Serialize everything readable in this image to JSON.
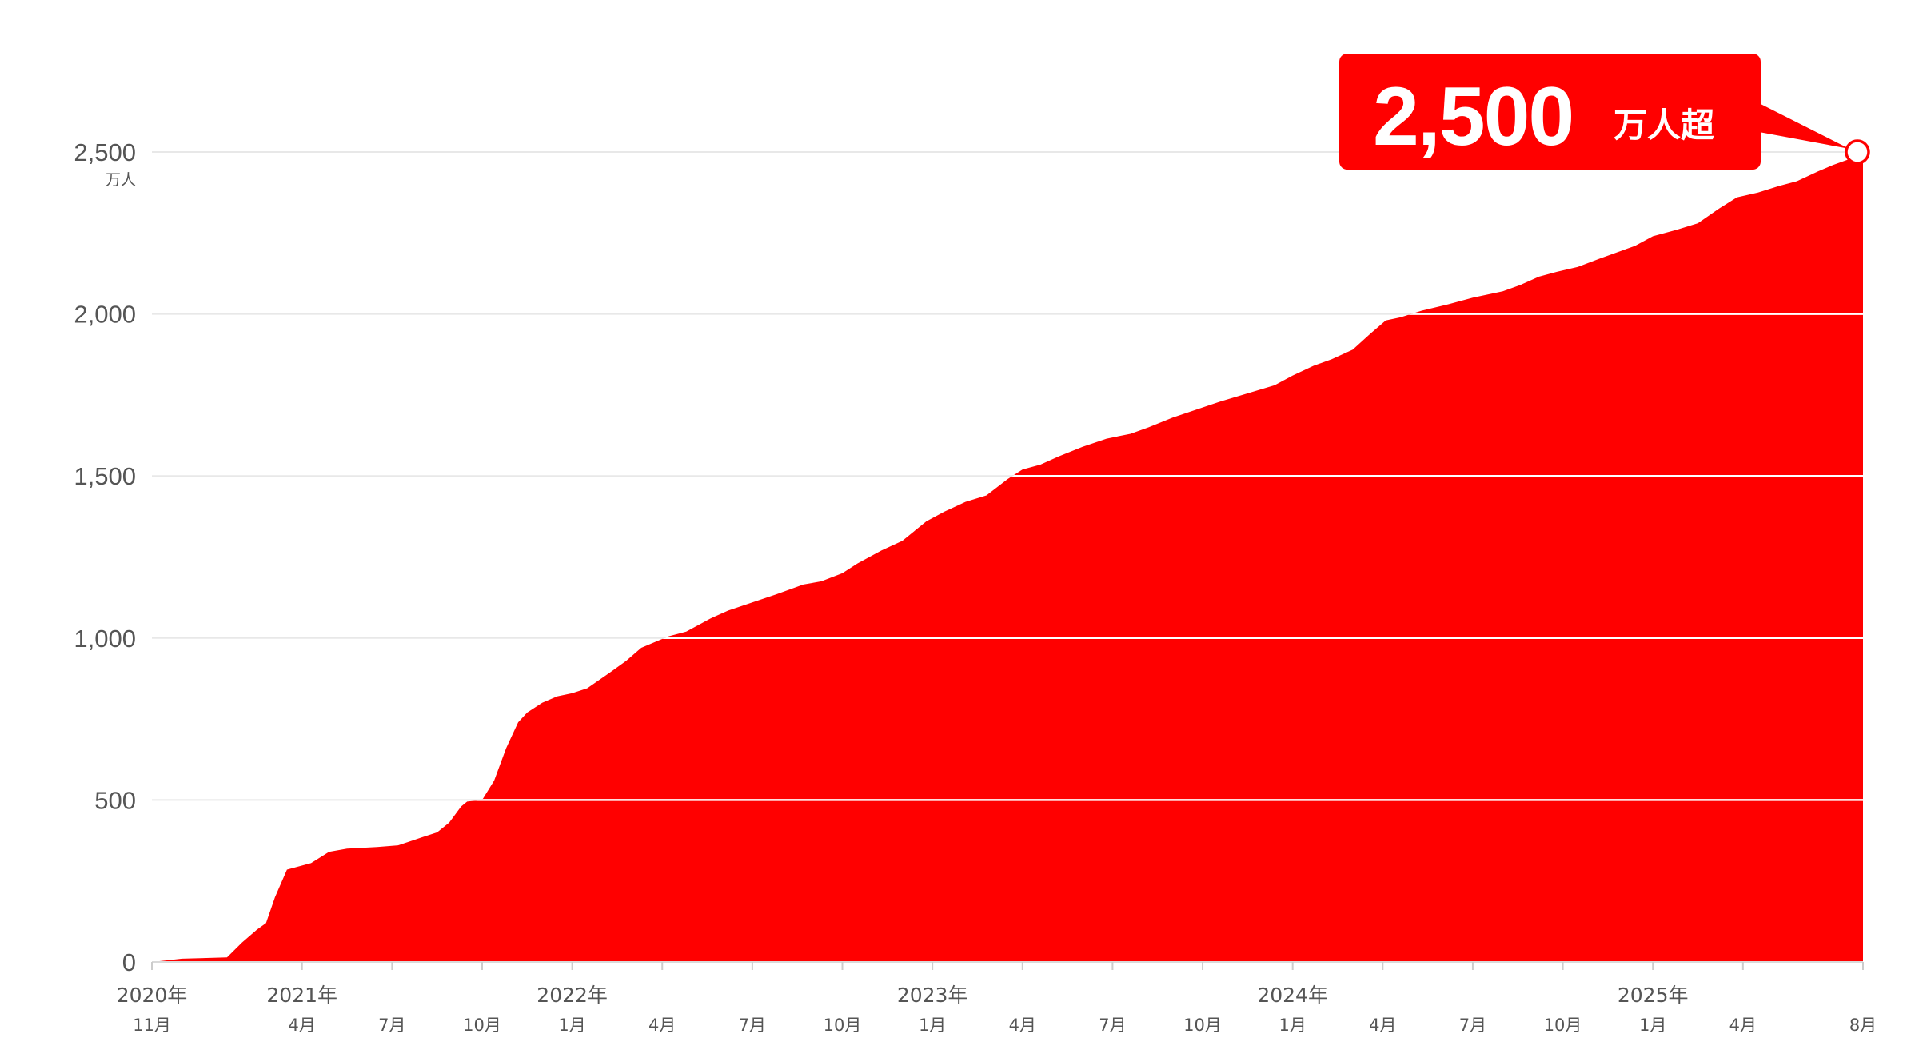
{
  "chart_data": {
    "type": "area",
    "y_unit": "万人",
    "ylim": [
      0,
      2500
    ],
    "y_ticks": [
      {
        "value": 0,
        "label": "0"
      },
      {
        "value": 500,
        "label": "500"
      },
      {
        "value": 1000,
        "label": "1,000"
      },
      {
        "value": 1500,
        "label": "1,500"
      },
      {
        "value": 2000,
        "label": "2,000"
      },
      {
        "value": 2500,
        "label": "2,500"
      }
    ],
    "x_ticks": [
      {
        "m": 0,
        "year": "2020年",
        "month": "11月"
      },
      {
        "m": 5,
        "year": "2021年",
        "month": "4月"
      },
      {
        "m": 8,
        "year": "",
        "month": "7月"
      },
      {
        "m": 11,
        "year": "",
        "month": "10月"
      },
      {
        "m": 14,
        "year": "2022年",
        "month": "1月"
      },
      {
        "m": 17,
        "year": "",
        "month": "4月"
      },
      {
        "m": 20,
        "year": "",
        "month": "7月"
      },
      {
        "m": 23,
        "year": "",
        "month": "10月"
      },
      {
        "m": 26,
        "year": "2023年",
        "month": "1月"
      },
      {
        "m": 29,
        "year": "",
        "month": "4月"
      },
      {
        "m": 32,
        "year": "",
        "month": "7月"
      },
      {
        "m": 35,
        "year": "",
        "month": "10月"
      },
      {
        "m": 38,
        "year": "2024年",
        "month": "1月"
      },
      {
        "m": 41,
        "year": "",
        "month": "4月"
      },
      {
        "m": 44,
        "year": "",
        "month": "7月"
      },
      {
        "m": 47,
        "year": "",
        "month": "10月"
      },
      {
        "m": 50,
        "year": "2025年",
        "month": "1月"
      },
      {
        "m": 53,
        "year": "",
        "month": "4月"
      },
      {
        "m": 57,
        "year": "",
        "month": "8月"
      }
    ],
    "x_range": [
      0,
      57
    ],
    "points": [
      [
        0,
        0
      ],
      [
        0.5,
        5
      ],
      [
        1,
        10
      ],
      [
        2.5,
        14
      ],
      [
        3,
        60
      ],
      [
        3.5,
        100
      ],
      [
        3.8,
        120
      ],
      [
        4.1,
        200
      ],
      [
        4.5,
        285
      ],
      [
        5.3,
        305
      ],
      [
        5.9,
        340
      ],
      [
        6.5,
        350
      ],
      [
        7.5,
        355
      ],
      [
        8.2,
        360
      ],
      [
        9,
        385
      ],
      [
        9.5,
        400
      ],
      [
        9.9,
        430
      ],
      [
        10.3,
        480
      ],
      [
        10.5,
        495
      ],
      [
        11,
        500
      ],
      [
        11.4,
        560
      ],
      [
        11.8,
        660
      ],
      [
        12.2,
        740
      ],
      [
        12.5,
        770
      ],
      [
        13,
        800
      ],
      [
        13.5,
        820
      ],
      [
        14,
        830
      ],
      [
        14.5,
        845
      ],
      [
        15.2,
        890
      ],
      [
        15.8,
        930
      ],
      [
        16.3,
        970
      ],
      [
        17.2,
        1005
      ],
      [
        17.8,
        1020
      ],
      [
        18.6,
        1060
      ],
      [
        19.2,
        1085
      ],
      [
        20,
        1110
      ],
      [
        20.8,
        1135
      ],
      [
        21.7,
        1165
      ],
      [
        22.3,
        1175
      ],
      [
        23,
        1200
      ],
      [
        23.5,
        1230
      ],
      [
        24.3,
        1270
      ],
      [
        25,
        1300
      ],
      [
        25.8,
        1360
      ],
      [
        26.4,
        1390
      ],
      [
        27.1,
        1420
      ],
      [
        27.8,
        1440
      ],
      [
        28.5,
        1490
      ],
      [
        29,
        1520
      ],
      [
        29.6,
        1535
      ],
      [
        30.2,
        1560
      ],
      [
        31,
        1590
      ],
      [
        31.8,
        1615
      ],
      [
        32.6,
        1630
      ],
      [
        33.2,
        1650
      ],
      [
        34,
        1680
      ],
      [
        34.8,
        1705
      ],
      [
        35.6,
        1730
      ],
      [
        36.5,
        1755
      ],
      [
        37.4,
        1780
      ],
      [
        38,
        1810
      ],
      [
        38.7,
        1840
      ],
      [
        39.3,
        1860
      ],
      [
        40,
        1890
      ],
      [
        40.6,
        1940
      ],
      [
        41.1,
        1980
      ],
      [
        41.6,
        1990
      ],
      [
        42.3,
        2010
      ],
      [
        43.2,
        2030
      ],
      [
        44,
        2050
      ],
      [
        45,
        2070
      ],
      [
        45.6,
        2090
      ],
      [
        46.2,
        2115
      ],
      [
        46.8,
        2130
      ],
      [
        47.5,
        2145
      ],
      [
        48.2,
        2170
      ],
      [
        48.8,
        2190
      ],
      [
        49.4,
        2210
      ],
      [
        50,
        2240
      ],
      [
        50.8,
        2260
      ],
      [
        51.5,
        2280
      ],
      [
        52.2,
        2325
      ],
      [
        52.8,
        2360
      ],
      [
        53.5,
        2375
      ],
      [
        54.2,
        2395
      ],
      [
        54.8,
        2410
      ],
      [
        55.5,
        2440
      ],
      [
        56,
        2460
      ],
      [
        56.6,
        2480
      ],
      [
        57,
        2500
      ]
    ],
    "callout": {
      "number": "2,500",
      "unit": "万人超"
    },
    "colors": {
      "area": "#ff0000",
      "grid": "#e8e8e8",
      "axis_text": "#555555",
      "callout_bg": "#ff0000",
      "callout_text": "#ffffff"
    }
  }
}
